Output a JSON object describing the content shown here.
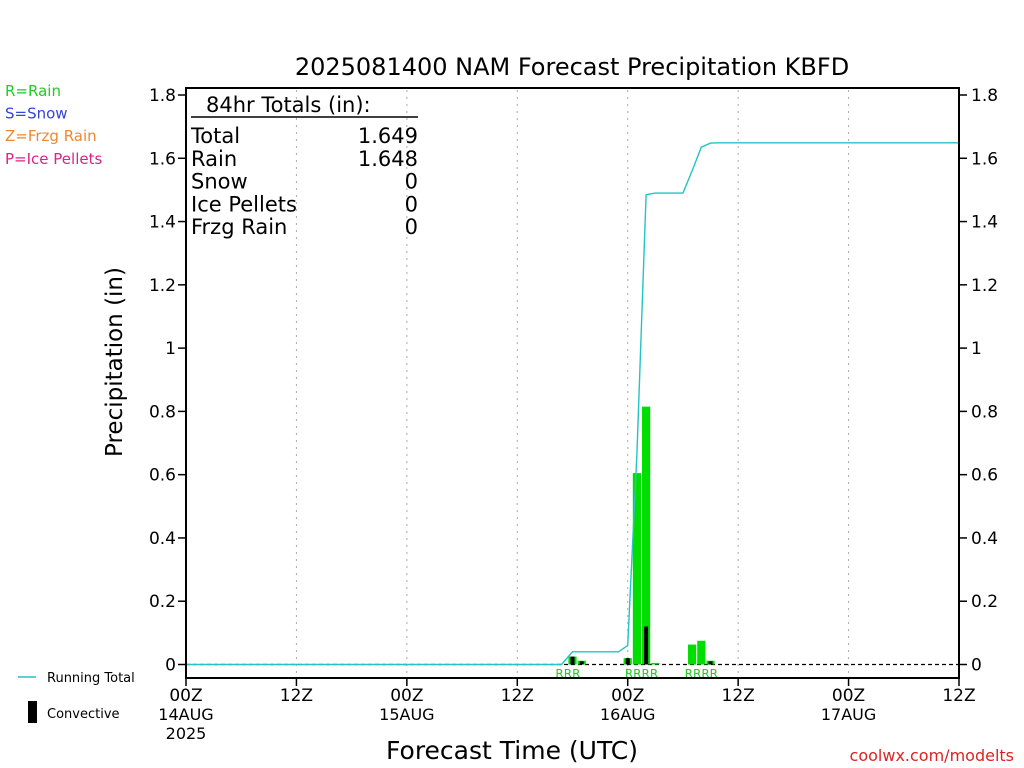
{
  "chart_data": {
    "type": "bar",
    "title": "2025081400 NAM Forecast Precipitation KBFD",
    "ylabel": "Precipitation (in)",
    "xlabel": "Forecast Time (UTC)",
    "ylim": [
      0,
      1.8
    ],
    "xlim_hours": [
      0,
      84
    ],
    "yticks": [
      0,
      0.2,
      0.4,
      0.6,
      0.8,
      1,
      1.2,
      1.4,
      1.6,
      1.8
    ],
    "ytick_labels": [
      "0",
      "0.2",
      "0.4",
      "0.6",
      "0.8",
      "1",
      "1.2",
      "1.4",
      "1.6",
      "1.8"
    ],
    "xticks": [
      {
        "hour": 0,
        "label": "00Z",
        "sub": "14AUG",
        "sub2": "2025"
      },
      {
        "hour": 12,
        "label": "12Z",
        "sub": "",
        "sub2": ""
      },
      {
        "hour": 24,
        "label": "00Z",
        "sub": "15AUG",
        "sub2": ""
      },
      {
        "hour": 36,
        "label": "12Z",
        "sub": "",
        "sub2": ""
      },
      {
        "hour": 48,
        "label": "00Z",
        "sub": "16AUG",
        "sub2": ""
      },
      {
        "hour": 60,
        "label": "12Z",
        "sub": "",
        "sub2": ""
      },
      {
        "hour": 72,
        "label": "00Z",
        "sub": "17AUG",
        "sub2": ""
      },
      {
        "hour": 84,
        "label": "12Z",
        "sub": "",
        "sub2": ""
      }
    ],
    "grid": "vertical dotted",
    "precip_type_legend": [
      {
        "text": "R=Rain",
        "color": "#22cc22"
      },
      {
        "text": "S=Snow",
        "color": "#3344dd"
      },
      {
        "text": "Z=Frzg Rain",
        "color": "#ee8833"
      },
      {
        "text": "P=Ice Pellets",
        "color": "#dd2288"
      }
    ],
    "series_legend": [
      {
        "text": "Running Total",
        "color": "#22c4c4"
      },
      {
        "text": "Convective",
        "color": "#000000"
      }
    ],
    "totals_box": {
      "header": "84hr Totals (in):",
      "rows": [
        {
          "label": "Total",
          "value": "1.649"
        },
        {
          "label": "Rain",
          "value": "1.648"
        },
        {
          "label": "Snow",
          "value": "0"
        },
        {
          "label": "Ice Pellets",
          "value": "0"
        },
        {
          "label": "Frzg Rain",
          "value": "0"
        }
      ]
    },
    "rain_bars": [
      {
        "hour": 42,
        "value": 0.025
      },
      {
        "hour": 43,
        "value": 0.012
      },
      {
        "hour": 48,
        "value": 0.02
      },
      {
        "hour": 49,
        "value": 0.605
      },
      {
        "hour": 50,
        "value": 0.815
      },
      {
        "hour": 51,
        "value": 0.005
      },
      {
        "hour": 55,
        "value": 0.063
      },
      {
        "hour": 56,
        "value": 0.075
      },
      {
        "hour": 57,
        "value": 0.012
      }
    ],
    "convective_bars": [
      {
        "hour": 42,
        "value": 0.025
      },
      {
        "hour": 43,
        "value": 0.01
      },
      {
        "hour": 48,
        "value": 0.02
      },
      {
        "hour": 50,
        "value": 0.12
      },
      {
        "hour": 57,
        "value": 0.01
      }
    ],
    "type_markers": [
      {
        "hour": 41.5,
        "text": "RRR"
      },
      {
        "hour": 49.5,
        "text": "RRRR"
      },
      {
        "hour": 56.0,
        "text": "RRRR"
      }
    ],
    "running_total": {
      "x": [
        0,
        40.8,
        42,
        44,
        45,
        46,
        47,
        48,
        49,
        50,
        51,
        52,
        53,
        54,
        55,
        56,
        57,
        58,
        60,
        84
      ],
      "y": [
        0,
        0,
        0.04,
        0.04,
        0.04,
        0.04,
        0.04,
        0.06,
        0.665,
        1.485,
        1.49,
        1.49,
        1.49,
        1.49,
        1.56,
        1.635,
        1.648,
        1.649,
        1.649,
        1.649
      ]
    }
  },
  "footer": {
    "credit": "coolwx.com/modelts"
  }
}
